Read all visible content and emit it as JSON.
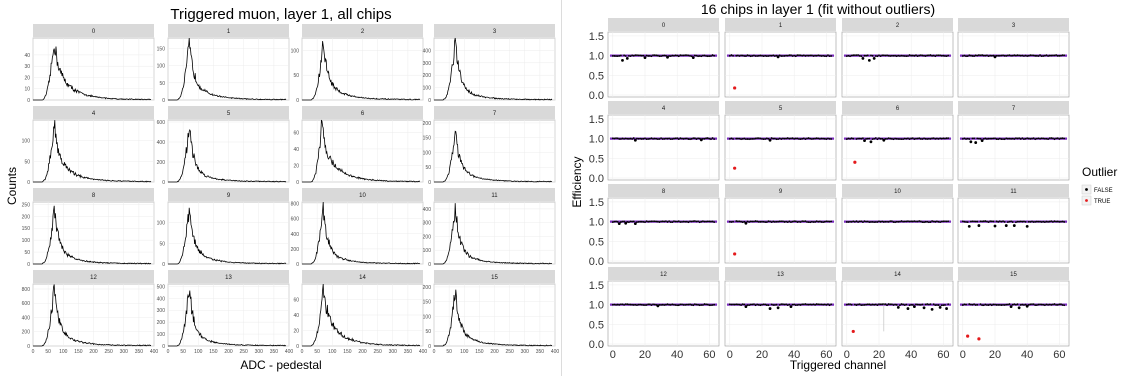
{
  "chart_data": [
    {
      "type": "line",
      "title": "Triggered muon, layer 1, all chips",
      "xlabel": "ADC - pedestal",
      "ylabel": "Counts",
      "xlim": [
        0,
        400
      ],
      "x_ticks": [
        0,
        50,
        100,
        150,
        200,
        250,
        300,
        350,
        400
      ],
      "grid": true,
      "panels": [
        {
          "label": "0",
          "peak_x": 70,
          "peak_y": 52,
          "yticks": [
            0,
            10,
            20,
            30,
            40
          ],
          "ylim": [
            0,
            55
          ],
          "tail": 0.55
        },
        {
          "label": "1",
          "peak_x": 70,
          "peak_y": 165,
          "yticks": [
            0,
            50,
            100,
            150
          ],
          "ylim": [
            0,
            180
          ],
          "tail": 0.35
        },
        {
          "label": "2",
          "peak_x": 70,
          "peak_y": 115,
          "yticks": [
            0,
            50,
            100
          ],
          "ylim": [
            0,
            125
          ],
          "tail": 0.35
        },
        {
          "label": "3",
          "peak_x": 70,
          "peak_y": 470,
          "yticks": [
            0,
            100,
            200,
            300,
            400
          ],
          "ylim": [
            0,
            500
          ],
          "tail": 0.25
        },
        {
          "label": "4",
          "peak_x": 70,
          "peak_y": 140,
          "yticks": [
            0,
            50,
            100
          ],
          "ylim": [
            0,
            150
          ],
          "tail": 0.45
        },
        {
          "label": "5",
          "peak_x": 70,
          "peak_y": 560,
          "yticks": [
            0,
            200,
            400,
            600
          ],
          "ylim": [
            0,
            620
          ],
          "tail": 0.25
        },
        {
          "label": "6",
          "peak_x": 65,
          "peak_y": 68,
          "yticks": [
            0,
            20,
            40,
            60
          ],
          "ylim": [
            0,
            75
          ],
          "tail": 0.6
        },
        {
          "label": "7",
          "peak_x": 70,
          "peak_y": 170,
          "yticks": [
            0,
            50,
            100,
            150,
            200
          ],
          "ylim": [
            0,
            210
          ],
          "tail": 0.3
        },
        {
          "label": "8",
          "peak_x": 70,
          "peak_y": 230,
          "yticks": [
            0,
            50,
            100,
            150,
            200,
            250
          ],
          "ylim": [
            0,
            260
          ],
          "tail": 0.3
        },
        {
          "label": "9",
          "peak_x": 70,
          "peak_y": 135,
          "yticks": [
            0,
            50,
            100
          ],
          "ylim": [
            0,
            150
          ],
          "tail": 0.3
        },
        {
          "label": "10",
          "peak_x": 70,
          "peak_y": 760,
          "yticks": [
            0,
            200,
            400,
            600,
            800
          ],
          "ylim": [
            0,
            820
          ],
          "tail": 0.25
        },
        {
          "label": "11",
          "peak_x": 70,
          "peak_y": 420,
          "yticks": [
            0,
            100,
            200,
            300,
            400
          ],
          "ylim": [
            0,
            450
          ],
          "tail": 0.25
        },
        {
          "label": "12",
          "peak_x": 70,
          "peak_y": 820,
          "yticks": [
            0,
            200,
            400,
            600,
            800
          ],
          "ylim": [
            0,
            870
          ],
          "tail": 0.3
        },
        {
          "label": "13",
          "peak_x": 70,
          "peak_y": 490,
          "yticks": [
            0,
            100,
            200,
            300,
            400,
            500
          ],
          "ylim": [
            0,
            520
          ],
          "tail": 0.25
        },
        {
          "label": "14",
          "peak_x": 70,
          "peak_y": 75,
          "yticks": [
            0,
            20,
            40,
            60
          ],
          "ylim": [
            0,
            80
          ],
          "tail": 0.55
        },
        {
          "label": "15",
          "peak_x": 70,
          "peak_y": 185,
          "yticks": [
            0,
            50,
            100,
            150,
            200
          ],
          "ylim": [
            0,
            210
          ],
          "tail": 0.3
        }
      ]
    },
    {
      "type": "scatter",
      "title": "16 chips in layer 1 (fit without outliers)",
      "xlabel": "Triggered channel",
      "ylabel": "Efficiency",
      "xlim": [
        -3,
        66
      ],
      "ylim": [
        -0.05,
        1.6
      ],
      "x_ticks": [
        0,
        20,
        40,
        60
      ],
      "y_ticks": [
        "0.0",
        "0.5",
        "1.0",
        "1.5"
      ],
      "fit_value": 1.0,
      "grid": true,
      "legend": {
        "title": "Outlier",
        "position": "right",
        "entries": [
          {
            "name": "FALSE",
            "color": "#000000"
          },
          {
            "name": "TRUE",
            "color": "#e41a1c"
          }
        ]
      },
      "panels": [
        {
          "label": "0",
          "outliers": [],
          "dips": [
            [
              6,
              0.88
            ],
            [
              9,
              0.93
            ],
            [
              20,
              0.95
            ],
            [
              34,
              0.96
            ],
            [
              50,
              0.95
            ]
          ]
        },
        {
          "label": "1",
          "outliers": [
            [
              3,
              0.18
            ]
          ],
          "dips": [
            [
              30,
              0.97
            ]
          ]
        },
        {
          "label": "2",
          "outliers": [],
          "dips": [
            [
              10,
              0.93
            ],
            [
              14,
              0.88
            ],
            [
              17,
              0.93
            ]
          ]
        },
        {
          "label": "3",
          "outliers": [],
          "dips": [
            [
              20,
              0.97
            ]
          ]
        },
        {
          "label": "4",
          "outliers": [],
          "dips": [
            [
              14,
              0.96
            ],
            [
              55,
              0.97
            ]
          ]
        },
        {
          "label": "5",
          "outliers": [
            [
              3,
              0.25
            ]
          ],
          "dips": [
            [
              25,
              0.96
            ]
          ]
        },
        {
          "label": "6",
          "outliers": [
            [
              5,
              0.4
            ]
          ],
          "dips": [
            [
              11,
              0.95
            ],
            [
              15,
              0.92
            ],
            [
              23,
              0.96
            ]
          ]
        },
        {
          "label": "7",
          "outliers": [],
          "dips": [
            [
              5,
              0.92
            ],
            [
              8,
              0.9
            ],
            [
              12,
              0.95
            ]
          ]
        },
        {
          "label": "8",
          "outliers": [],
          "dips": [
            [
              4,
              0.95
            ],
            [
              8,
              0.96
            ],
            [
              14,
              0.95
            ]
          ]
        },
        {
          "label": "9",
          "outliers": [
            [
              3,
              0.18
            ]
          ],
          "dips": [
            [
              10,
              0.96
            ]
          ]
        },
        {
          "label": "10",
          "outliers": [],
          "dips": []
        },
        {
          "label": "11",
          "outliers": [],
          "dips": [
            [
              4,
              0.88
            ],
            [
              10,
              0.9
            ],
            [
              20,
              0.89
            ],
            [
              27,
              0.9
            ],
            [
              32,
              0.9
            ],
            [
              40,
              0.88
            ]
          ]
        },
        {
          "label": "12",
          "outliers": [],
          "dips": [
            [
              28,
              0.97
            ]
          ]
        },
        {
          "label": "13",
          "outliers": [],
          "dips": [
            [
              10,
              0.95
            ],
            [
              25,
              0.9
            ],
            [
              30,
              0.92
            ],
            [
              38,
              0.95
            ]
          ]
        },
        {
          "label": "14",
          "outliers": [
            [
              4,
              0.32
            ]
          ],
          "dips": [
            [
              32,
              0.93
            ],
            [
              38,
              0.9
            ],
            [
              42,
              0.95
            ],
            [
              48,
              0.92
            ],
            [
              53,
              0.88
            ],
            [
              58,
              0.93
            ],
            [
              62,
              0.9
            ]
          ]
        },
        {
          "label": "15",
          "outliers": [
            [
              3,
              0.2
            ],
            [
              10,
              0.13
            ]
          ],
          "dips": [
            [
              30,
              0.95
            ],
            [
              35,
              0.92
            ],
            [
              40,
              0.96
            ]
          ]
        }
      ]
    }
  ]
}
